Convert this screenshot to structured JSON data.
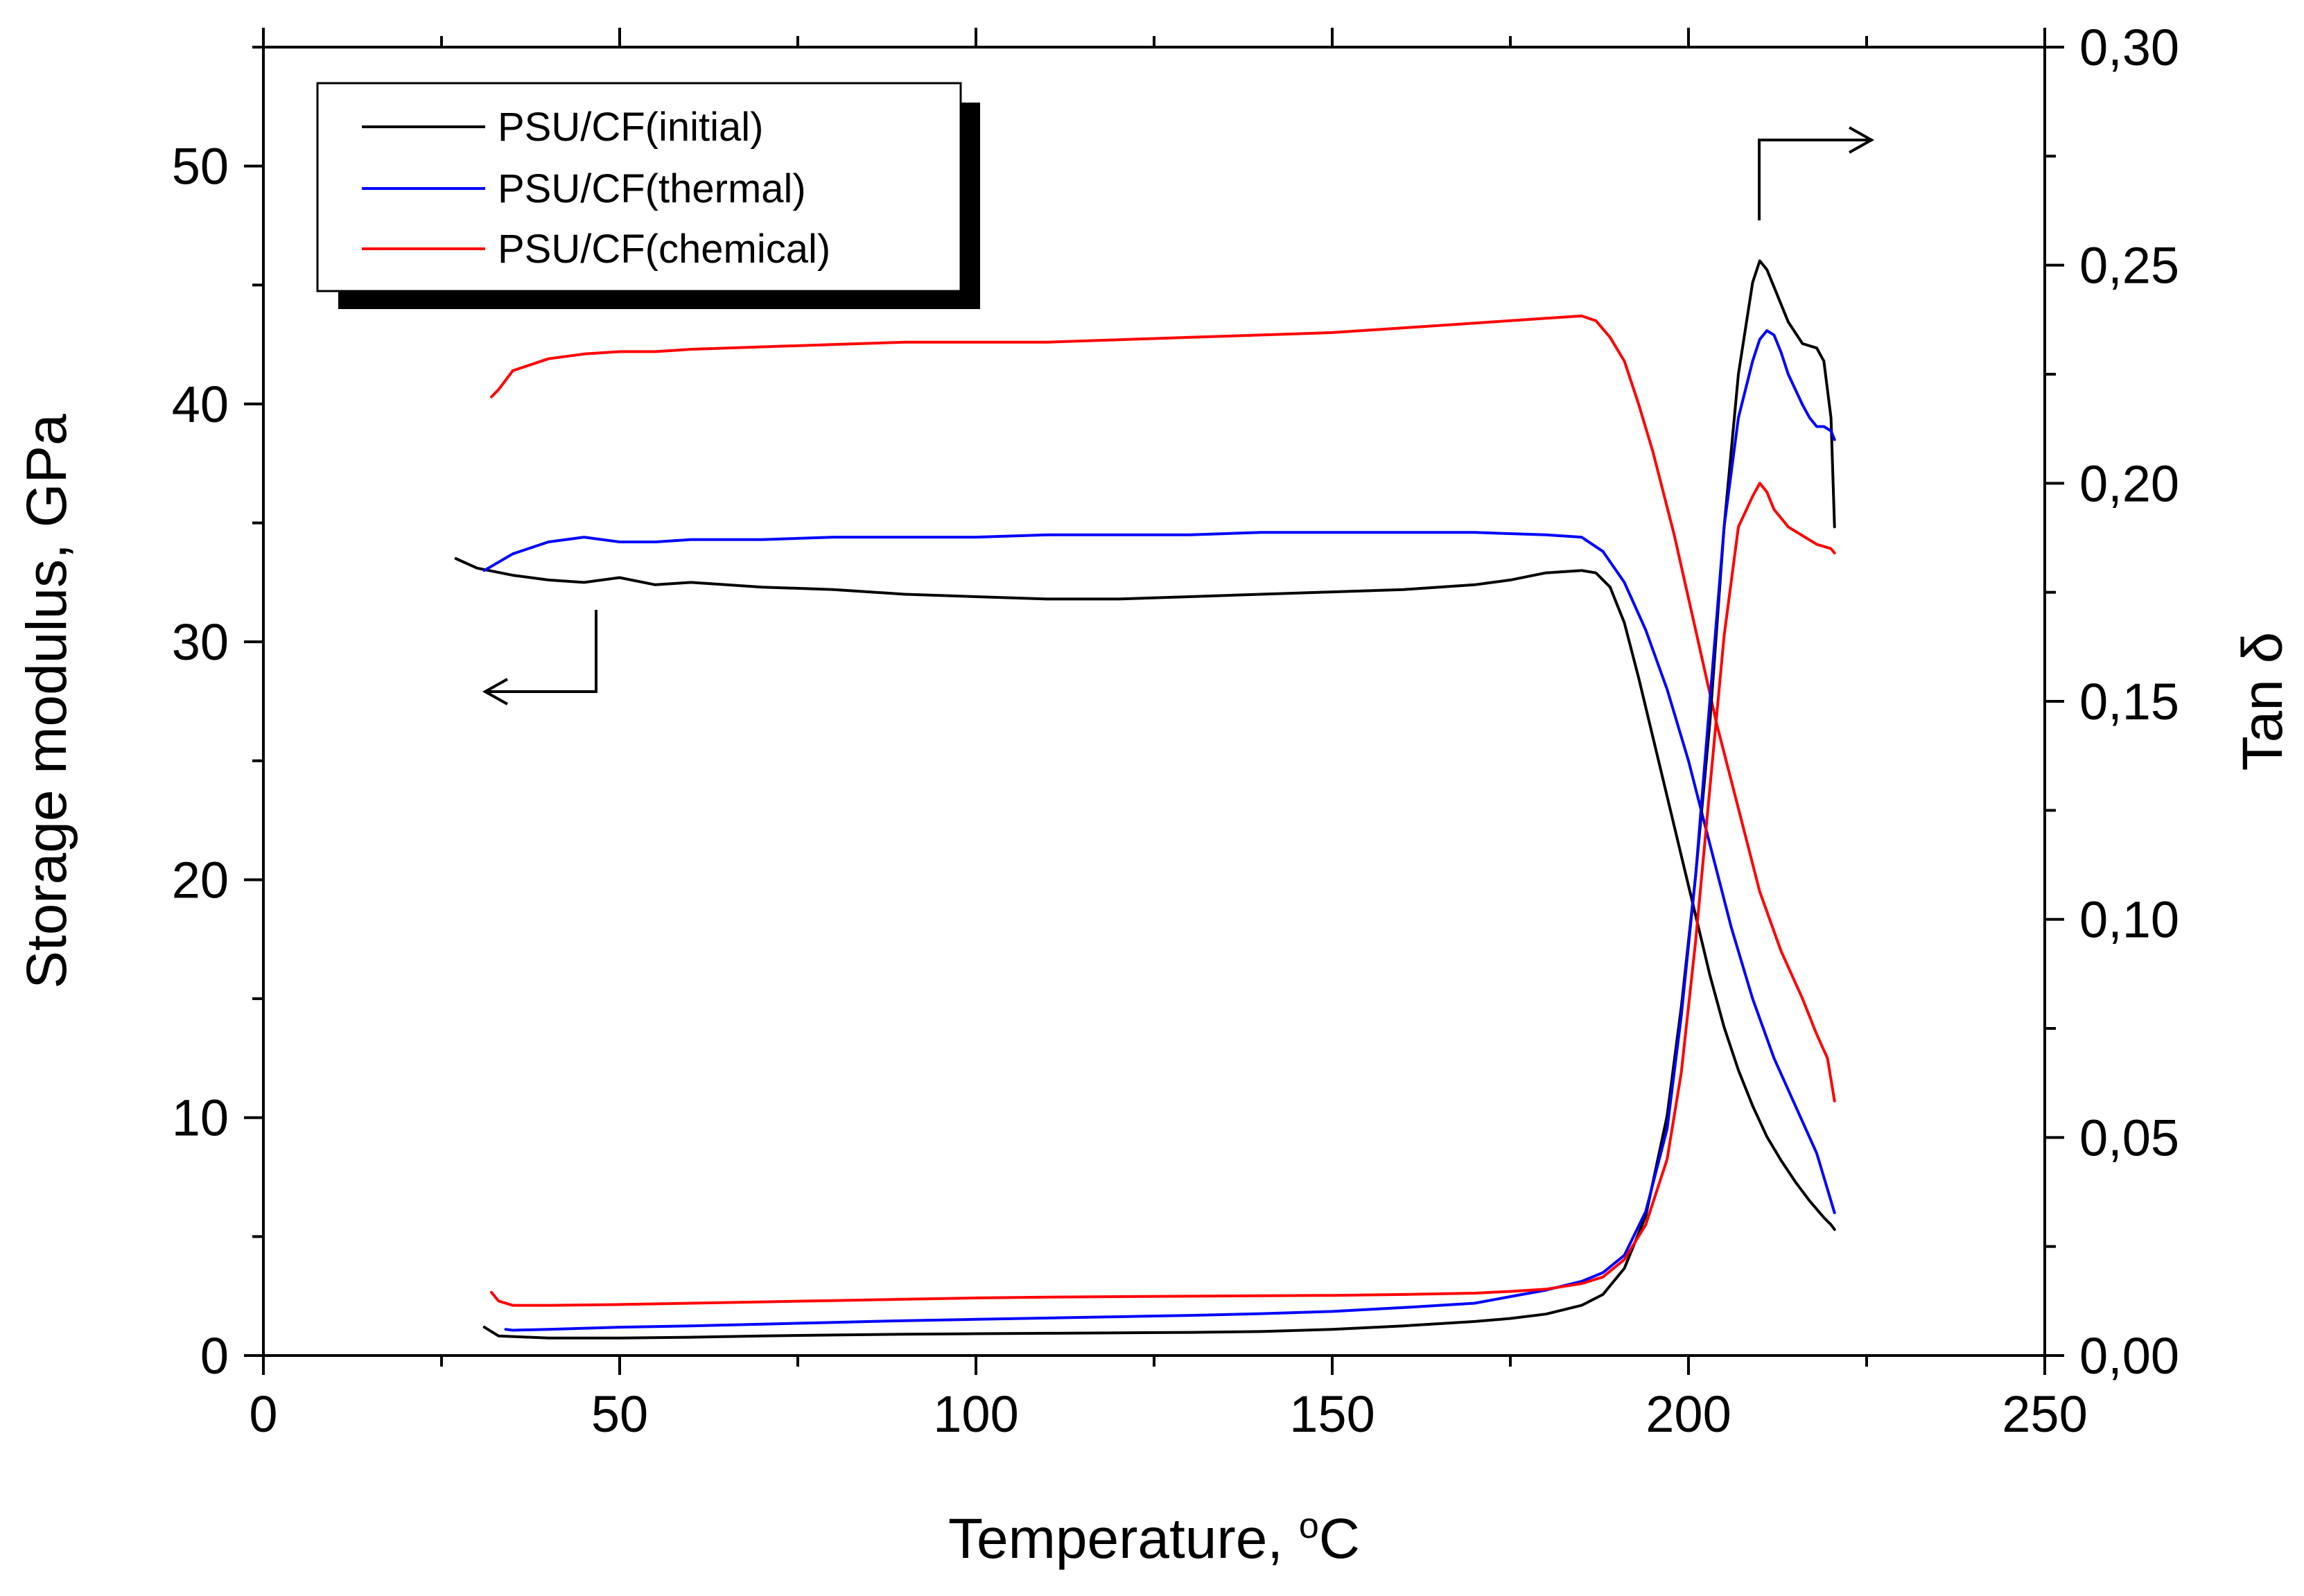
{
  "colors": {
    "initial": "#000000",
    "thermal": "#0000ff",
    "chemical": "#ff0000",
    "axis": "#000000",
    "background": "#ffffff"
  },
  "chart_data": {
    "type": "line",
    "title": "",
    "xlabel": "Temperature, ",
    "xlabel_unit_sup": "o",
    "xlabel_unit": "C",
    "ylabel": "Storage modulus, GPa",
    "y2label": "Tan δ",
    "xlim": [
      0,
      250
    ],
    "ylim": [
      0,
      55
    ],
    "y2lim": [
      0,
      0.3
    ],
    "x_ticks": [
      0,
      50,
      100,
      150,
      200,
      250
    ],
    "x_tick_labels": [
      "0",
      "50",
      "100",
      "150",
      "200",
      "250"
    ],
    "y_ticks": [
      0,
      10,
      20,
      30,
      40,
      50
    ],
    "y_tick_labels": [
      "0",
      "10",
      "20",
      "30",
      "40",
      "50"
    ],
    "y2_ticks": [
      0,
      0.05,
      0.1,
      0.15,
      0.2,
      0.25,
      0.3
    ],
    "y2_tick_labels": [
      "0,00",
      "0,05",
      "0,10",
      "0,15",
      "0,20",
      "0,25",
      "0,30"
    ],
    "grid": false,
    "legend": {
      "position": "top-left",
      "entries": [
        "PSU/CF(initial)",
        "PSU/CF(thermal)",
        "PSU/CF(chemical)"
      ]
    },
    "annotations": [
      {
        "type": "arrow",
        "points_to": "left axis (storage modulus)",
        "anchor": [
          47,
          30.5
        ]
      },
      {
        "type": "arrow",
        "points_to": "right axis (tan δ)",
        "anchor": [
          210,
          0.262
        ]
      }
    ],
    "series": [
      {
        "name": "PSU/CF(initial)",
        "key": "initial",
        "quantity": "storage modulus",
        "axis": "left",
        "x": [
          27,
          30,
          35,
          40,
          45,
          50,
          55,
          60,
          70,
          80,
          90,
          100,
          110,
          120,
          130,
          140,
          150,
          160,
          170,
          175,
          180,
          185,
          187,
          189,
          191,
          193,
          195,
          197,
          199,
          201,
          203,
          205,
          207,
          209,
          211,
          213,
          215,
          217,
          219,
          220,
          220.5
        ],
        "values": [
          33.5,
          33.1,
          32.8,
          32.6,
          32.5,
          32.7,
          32.4,
          32.5,
          32.3,
          32.2,
          32.0,
          31.9,
          31.8,
          31.8,
          31.9,
          32.0,
          32.1,
          32.2,
          32.4,
          32.6,
          32.9,
          33.0,
          32.9,
          32.3,
          30.8,
          28.5,
          26.0,
          23.5,
          21.0,
          18.5,
          16.0,
          13.8,
          12.0,
          10.5,
          9.2,
          8.2,
          7.3,
          6.5,
          5.8,
          5.5,
          5.3
        ]
      },
      {
        "name": "PSU/CF(thermal)",
        "key": "thermal",
        "quantity": "storage modulus",
        "axis": "left",
        "x": [
          31,
          35,
          40,
          45,
          50,
          55,
          60,
          70,
          80,
          90,
          100,
          110,
          120,
          130,
          140,
          150,
          160,
          170,
          180,
          185,
          188,
          191,
          194,
          197,
          200,
          203,
          206,
          209,
          212,
          215,
          218,
          220,
          220.5
        ],
        "values": [
          33.0,
          33.7,
          34.2,
          34.4,
          34.2,
          34.2,
          34.3,
          34.3,
          34.4,
          34.4,
          34.4,
          34.5,
          34.5,
          34.5,
          34.6,
          34.6,
          34.6,
          34.6,
          34.5,
          34.4,
          33.8,
          32.5,
          30.5,
          28.0,
          25.0,
          21.5,
          18.0,
          15.0,
          12.5,
          10.5,
          8.5,
          6.5,
          6.0
        ]
      },
      {
        "name": "PSU/CF(chemical)",
        "key": "chemical",
        "quantity": "storage modulus",
        "axis": "left",
        "x": [
          32,
          33,
          35,
          40,
          45,
          50,
          55,
          60,
          70,
          80,
          90,
          100,
          110,
          120,
          130,
          140,
          150,
          160,
          170,
          175,
          180,
          185,
          187,
          189,
          191,
          193,
          195,
          198,
          201,
          204,
          207,
          210,
          213,
          216,
          218,
          219.5,
          220.5
        ],
        "values": [
          40.3,
          40.6,
          41.4,
          41.9,
          42.1,
          42.2,
          42.2,
          42.3,
          42.4,
          42.5,
          42.6,
          42.6,
          42.6,
          42.7,
          42.8,
          42.9,
          43.0,
          43.2,
          43.4,
          43.5,
          43.6,
          43.7,
          43.5,
          42.8,
          41.8,
          40.0,
          38.0,
          34.5,
          30.5,
          26.5,
          23.0,
          19.5,
          17.0,
          15.0,
          13.5,
          12.5,
          10.7
        ]
      },
      {
        "name": "PSU/CF(initial)",
        "key": "initial",
        "quantity": "tan δ",
        "axis": "right",
        "x": [
          31,
          33,
          40,
          50,
          60,
          70,
          80,
          90,
          100,
          110,
          120,
          130,
          140,
          150,
          160,
          170,
          175,
          180,
          185,
          188,
          191,
          194,
          197,
          199,
          201,
          203,
          205,
          207,
          209,
          210,
          211,
          212,
          214,
          216,
          218,
          219,
          220,
          220.5
        ],
        "values": [
          0.0065,
          0.0045,
          0.004,
          0.004,
          0.0042,
          0.0045,
          0.0047,
          0.0049,
          0.005,
          0.0051,
          0.0052,
          0.0053,
          0.0055,
          0.006,
          0.0068,
          0.0078,
          0.0085,
          0.0095,
          0.0115,
          0.014,
          0.02,
          0.032,
          0.055,
          0.08,
          0.11,
          0.145,
          0.19,
          0.225,
          0.246,
          0.251,
          0.249,
          0.245,
          0.237,
          0.232,
          0.231,
          0.228,
          0.215,
          0.19
        ]
      },
      {
        "name": "PSU/CF(thermal)",
        "key": "thermal",
        "quantity": "tan δ",
        "axis": "right",
        "x": [
          34,
          35,
          40,
          50,
          60,
          70,
          80,
          90,
          100,
          110,
          120,
          130,
          140,
          150,
          160,
          170,
          175,
          180,
          185,
          188,
          191,
          194,
          197,
          199,
          201,
          203,
          205,
          207,
          209,
          210,
          211,
          212,
          213,
          214,
          216,
          217,
          218,
          219,
          220,
          220.5
        ],
        "values": [
          0.006,
          0.0058,
          0.006,
          0.0065,
          0.0068,
          0.0072,
          0.0076,
          0.008,
          0.0083,
          0.0086,
          0.0089,
          0.0092,
          0.0096,
          0.0101,
          0.011,
          0.012,
          0.0135,
          0.015,
          0.017,
          0.019,
          0.023,
          0.033,
          0.052,
          0.078,
          0.11,
          0.15,
          0.19,
          0.215,
          0.228,
          0.233,
          0.235,
          0.234,
          0.23,
          0.225,
          0.218,
          0.215,
          0.213,
          0.213,
          0.212,
          0.21
        ]
      },
      {
        "name": "PSU/CF(chemical)",
        "key": "chemical",
        "quantity": "tan δ",
        "axis": "right",
        "x": [
          32,
          33,
          35,
          40,
          50,
          60,
          70,
          80,
          90,
          100,
          110,
          120,
          130,
          140,
          150,
          160,
          170,
          175,
          180,
          185,
          188,
          191,
          194,
          197,
          199,
          201,
          203,
          205,
          207,
          209,
          210,
          211,
          212,
          214,
          216,
          218,
          220,
          220.5
        ],
        "values": [
          0.0145,
          0.0125,
          0.0115,
          0.0115,
          0.0117,
          0.012,
          0.0123,
          0.0126,
          0.0129,
          0.0132,
          0.0134,
          0.0135,
          0.0136,
          0.0137,
          0.0138,
          0.014,
          0.0143,
          0.0147,
          0.0152,
          0.0165,
          0.018,
          0.022,
          0.03,
          0.045,
          0.065,
          0.095,
          0.13,
          0.165,
          0.19,
          0.197,
          0.2,
          0.198,
          0.194,
          0.19,
          0.188,
          0.186,
          0.185,
          0.184
        ]
      }
    ]
  }
}
